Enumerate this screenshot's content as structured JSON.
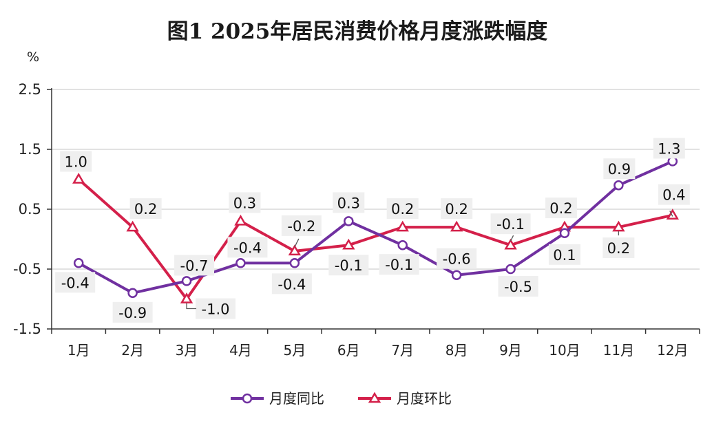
{
  "chart_data": {
    "type": "line",
    "title": "图1  2025年居民消费价格月度涨跌幅度",
    "unit_label": "%",
    "categories": [
      "1月",
      "2月",
      "3月",
      "4月",
      "5月",
      "6月",
      "7月",
      "8月",
      "9月",
      "10月",
      "11月",
      "12月"
    ],
    "ylim": [
      -1.5,
      2.5
    ],
    "yticks": [
      2.5,
      1.5,
      0.5,
      -0.5,
      -1.5
    ],
    "ytick_labels": [
      "2.5",
      "1.5",
      "0.5",
      "-0.5",
      "-1.5"
    ],
    "grid": true,
    "legend_position": "bottom-center",
    "series": [
      {
        "name": "月度同比",
        "color": "#7030a0",
        "marker": "circle",
        "values": [
          -0.4,
          -0.9,
          -0.7,
          -0.4,
          -0.4,
          0.3,
          -0.1,
          -0.6,
          -0.5,
          0.1,
          0.9,
          1.3
        ],
        "labels": [
          "-0.4",
          "-0.9",
          "-0.7",
          "-0.4",
          "-0.4",
          "0.3",
          "-0.1",
          "-0.6",
          "-0.5",
          "0.1",
          "0.9",
          "1.3"
        ]
      },
      {
        "name": "月度环比",
        "color": "#d4204a",
        "marker": "triangle",
        "values": [
          1.0,
          0.2,
          -1.0,
          0.3,
          -0.2,
          -0.1,
          0.2,
          0.2,
          -0.1,
          0.2,
          0.2,
          0.4
        ],
        "labels": [
          "1.0",
          "0.2",
          "-1.0",
          "0.3",
          "-0.2",
          "-0.1",
          "0.2",
          "0.2",
          "-0.1",
          "0.2",
          "0.2",
          "0.4"
        ]
      }
    ]
  }
}
